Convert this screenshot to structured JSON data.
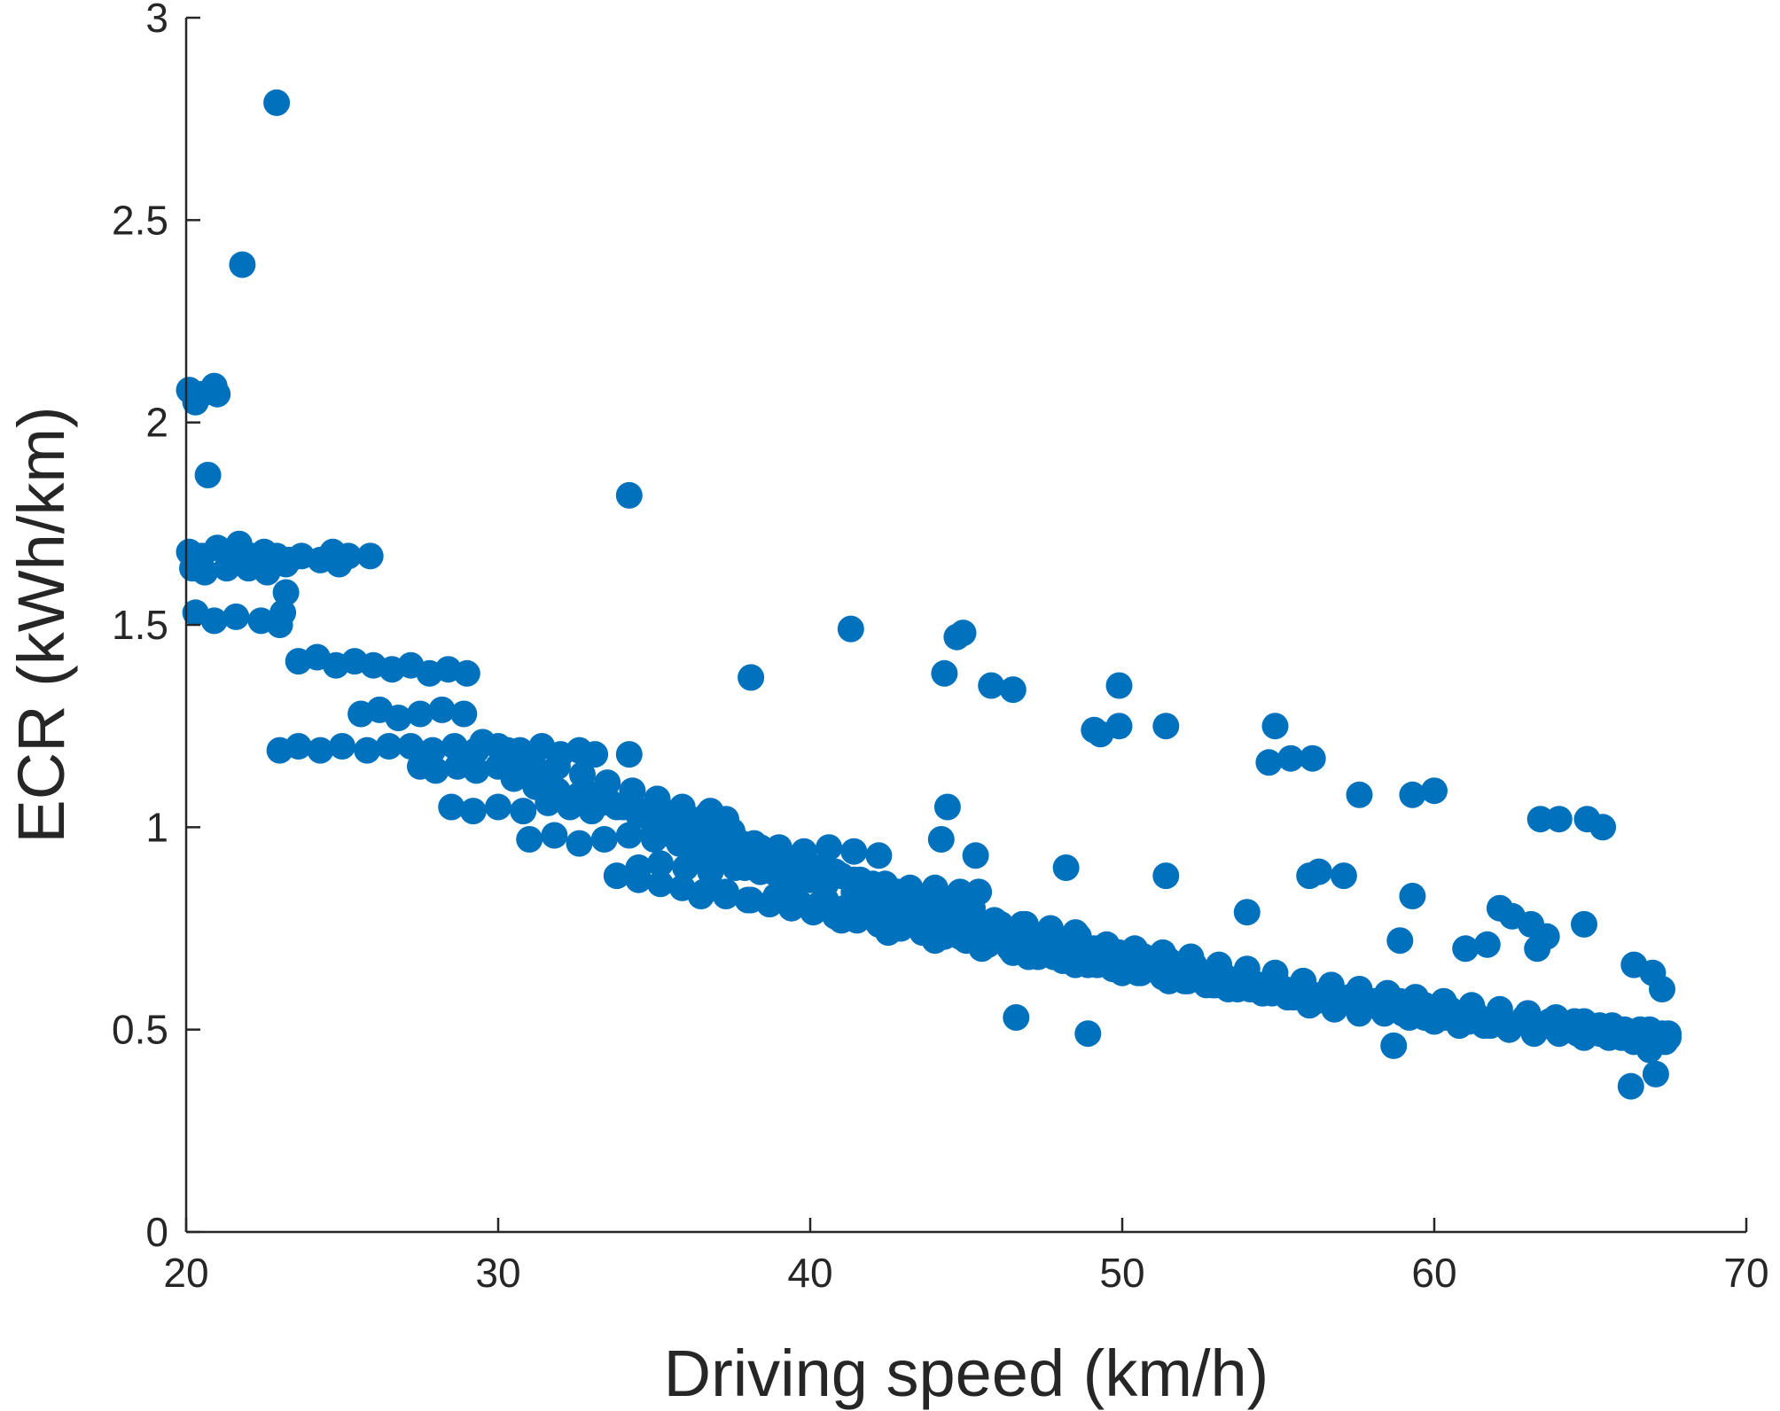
{
  "chart_data": {
    "type": "scatter",
    "title": "",
    "xlabel": "Driving speed (km/h)",
    "ylabel": "ECR (kWh/km)",
    "xlim": [
      20,
      70
    ],
    "ylim": [
      0,
      3
    ],
    "xticks": [
      20,
      30,
      40,
      50,
      60,
      70
    ],
    "xtick_labels": [
      "20",
      "30",
      "40",
      "50",
      "60",
      "70"
    ],
    "yticks": [
      0,
      0.5,
      1,
      1.5,
      2,
      2.5,
      3
    ],
    "ytick_labels": [
      "0",
      "0.5",
      "1",
      "1.5",
      "2",
      "2.5",
      "3"
    ],
    "grid": false,
    "legend": false,
    "marker_color": "#0072BD",
    "series": [
      {
        "x": [
          22.9,
          21.8,
          20.1,
          20.3,
          20.5,
          20.9,
          21.0,
          20.7,
          34.2,
          20.1,
          20.5,
          21.0,
          21.4,
          21.7,
          22.1,
          22.5,
          22.9,
          23.3,
          23.7,
          24.3,
          24.7,
          25.2,
          25.9,
          20.2,
          20.6,
          21.3,
          22.0,
          22.6,
          23.2,
          24.9,
          23.2,
          23.1,
          20.3,
          20.9,
          21.6,
          22.4,
          23.0,
          23.6,
          24.2,
          24.8,
          25.4,
          26.0,
          26.6,
          27.2,
          27.8,
          28.4,
          29.0,
          41.3,
          44.9,
          44.7,
          38.1,
          44.3,
          45.8,
          46.5,
          49.9,
          51.4,
          49.1,
          49.3,
          49.9,
          54.9,
          54.7,
          55.4,
          56.1,
          57.6,
          59.3,
          60.0,
          63.4,
          64.0,
          64.9,
          65.4,
          44.4,
          44.2,
          45.3,
          48.2,
          51.4,
          56.0,
          56.3,
          57.1,
          54.0,
          59.3,
          62.1,
          62.5,
          63.1,
          63.6,
          64.8,
          58.9,
          61.0,
          61.7,
          63.3,
          46.6,
          48.9,
          58.7,
          66.3,
          66.9,
          67.1,
          66.4,
          67.0,
          67.3,
          67.5,
          25.6,
          26.2,
          26.8,
          27.5,
          28.2,
          28.9,
          23.0,
          23.6,
          24.3,
          25.0,
          25.8,
          26.5,
          27.2,
          27.9,
          28.6,
          29.3,
          30.0,
          30.7,
          31.4,
          32.0,
          32.6,
          33.1,
          34.2,
          27.5,
          28.0,
          28.7,
          29.3,
          30.0,
          30.7,
          31.4,
          28.5,
          29.2,
          30.0,
          30.8,
          31.6,
          32.3,
          33.0,
          33.8,
          34.5,
          35.3,
          36.0,
          36.8,
          37.3,
          31.0,
          31.8,
          32.6,
          33.4,
          34.2,
          35.0,
          35.8,
          36.6,
          37.4,
          38.2,
          39.0,
          39.8,
          40.6,
          41.4,
          42.2,
          34.5,
          35.2,
          36.0,
          36.8,
          37.6,
          38.4,
          39.2,
          40.0,
          40.8,
          41.6,
          42.4,
          43.2,
          44.0,
          44.8,
          45.4,
          36.5,
          37.3,
          38.1,
          38.9,
          39.7,
          40.5,
          41.3,
          42.1,
          42.9,
          43.7,
          44.5,
          45.3,
          46.1,
          46.9,
          47.7,
          48.5,
          39.5,
          40.3,
          41.1,
          41.9,
          42.7,
          43.5,
          44.3,
          45.1,
          45.9,
          46.7,
          47.5,
          48.3,
          49.1,
          49.9,
          50.7,
          51.5,
          52.3,
          53.1,
          44.0,
          44.8,
          45.6,
          46.4,
          47.2,
          48.0,
          48.8,
          49.6,
          50.4,
          51.2,
          52.0,
          52.8,
          53.6,
          54.4,
          55.2,
          56.0,
          46.5,
          47.3,
          48.1,
          48.9,
          49.7,
          50.5,
          51.3,
          52.1,
          52.9,
          53.7,
          54.5,
          55.3,
          56.1,
          56.9,
          57.7,
          58.5,
          59.3,
          60.1,
          60.9,
          61.7,
          52.5,
          53.3,
          54.1,
          54.9,
          55.7,
          56.5,
          57.3,
          58.1,
          58.9,
          59.7,
          60.5,
          61.3,
          62.1,
          62.9,
          63.7,
          64.5,
          65.3,
          66.1,
          66.9,
          67.5,
          56.0,
          56.8,
          57.6,
          58.4,
          59.2,
          60.0,
          60.8,
          61.6,
          62.4,
          63.2,
          64.0,
          64.8,
          65.6,
          66.4,
          67.2,
          35.0,
          35.6,
          36.2,
          36.8,
          37.4,
          38.0,
          38.6,
          39.2,
          39.8,
          40.4,
          41.0,
          41.6,
          42.2,
          42.8,
          43.4,
          44.0,
          44.6,
          45.2,
          33.0,
          33.6,
          34.2,
          34.8,
          35.4,
          36.0,
          36.6,
          37.2,
          37.8,
          38.4,
          39.0,
          39.6,
          40.2,
          40.8,
          41.4,
          42.0,
          30.5,
          31.2,
          31.9,
          32.6,
          33.3,
          34.0,
          34.7,
          35.4,
          36.1,
          36.8,
          37.5,
          33.8,
          34.5,
          35.2,
          35.9,
          36.6,
          37.3,
          38.0,
          38.7,
          39.4,
          40.1,
          40.8,
          41.5,
          42.2,
          42.9,
          43.6,
          44.3,
          45.0,
          45.7,
          46.4,
          47.1,
          47.8,
          48.5,
          49.2,
          49.9,
          50.6,
          51.3,
          52.0,
          52.7,
          53.4,
          54.1,
          54.8,
          55.5,
          56.2,
          56.9,
          57.6,
          58.3,
          59.0,
          59.7,
          60.4,
          61.1,
          61.8,
          62.5,
          63.2,
          63.9,
          64.6,
          65.3,
          66.0,
          66.7,
          67.4,
          41.0,
          42.5,
          44.0,
          45.5,
          47.0,
          48.5,
          50.0,
          51.5,
          53.0,
          54.5,
          56.0,
          57.5,
          59.0,
          60.5,
          62.0,
          63.5,
          65.0,
          66.5,
          36.2,
          37.0,
          37.9,
          38.8,
          39.6,
          40.5,
          41.4,
          42.3,
          43.2,
          44.1,
          45.0,
          45.9,
          46.8,
          47.7,
          48.6,
          49.5,
          50.4,
          51.3,
          52.2,
          53.1,
          54.0,
          54.9,
          55.8,
          56.7,
          57.6,
          58.5,
          59.4,
          60.3,
          61.2,
          62.1,
          63.0,
          63.9,
          64.8,
          65.7,
          66.6,
          67.3,
          29.5,
          30.3,
          31.1,
          31.9,
          32.7,
          33.5,
          34.3,
          35.1,
          35.9,
          36.7
        ],
        "y": [
          2.79,
          2.39,
          2.08,
          2.05,
          2.07,
          2.09,
          2.07,
          1.87,
          1.82,
          1.68,
          1.67,
          1.69,
          1.68,
          1.7,
          1.67,
          1.68,
          1.67,
          1.66,
          1.67,
          1.66,
          1.68,
          1.67,
          1.67,
          1.64,
          1.63,
          1.64,
          1.64,
          1.63,
          1.65,
          1.65,
          1.58,
          1.53,
          1.53,
          1.51,
          1.52,
          1.51,
          1.5,
          1.41,
          1.42,
          1.4,
          1.41,
          1.4,
          1.39,
          1.4,
          1.38,
          1.39,
          1.38,
          1.49,
          1.48,
          1.47,
          1.37,
          1.38,
          1.35,
          1.34,
          1.35,
          1.25,
          1.24,
          1.23,
          1.25,
          1.25,
          1.16,
          1.17,
          1.17,
          1.08,
          1.08,
          1.09,
          1.02,
          1.02,
          1.02,
          1.0,
          1.05,
          0.97,
          0.93,
          0.9,
          0.88,
          0.88,
          0.89,
          0.88,
          0.79,
          0.83,
          0.8,
          0.78,
          0.76,
          0.73,
          0.76,
          0.72,
          0.7,
          0.71,
          0.7,
          0.53,
          0.49,
          0.46,
          0.36,
          0.45,
          0.39,
          0.66,
          0.64,
          0.6,
          0.48,
          1.28,
          1.29,
          1.27,
          1.28,
          1.29,
          1.28,
          1.19,
          1.2,
          1.19,
          1.2,
          1.19,
          1.2,
          1.2,
          1.19,
          1.2,
          1.19,
          1.2,
          1.19,
          1.2,
          1.18,
          1.19,
          1.18,
          1.18,
          1.15,
          1.14,
          1.15,
          1.14,
          1.15,
          1.14,
          1.13,
          1.05,
          1.04,
          1.05,
          1.04,
          1.06,
          1.05,
          1.04,
          1.05,
          1.03,
          1.04,
          1.03,
          1.04,
          1.02,
          0.97,
          0.98,
          0.96,
          0.97,
          0.98,
          0.97,
          0.96,
          0.97,
          0.95,
          0.96,
          0.95,
          0.94,
          0.95,
          0.94,
          0.93,
          0.9,
          0.91,
          0.9,
          0.89,
          0.9,
          0.89,
          0.88,
          0.87,
          0.88,
          0.87,
          0.86,
          0.85,
          0.85,
          0.84,
          0.84,
          0.83,
          0.84,
          0.82,
          0.83,
          0.81,
          0.82,
          0.8,
          0.81,
          0.79,
          0.78,
          0.78,
          0.77,
          0.76,
          0.76,
          0.75,
          0.74,
          0.82,
          0.81,
          0.8,
          0.79,
          0.78,
          0.77,
          0.76,
          0.75,
          0.74,
          0.73,
          0.72,
          0.71,
          0.7,
          0.69,
          0.68,
          0.67,
          0.66,
          0.65,
          0.74,
          0.73,
          0.72,
          0.71,
          0.7,
          0.69,
          0.68,
          0.67,
          0.66,
          0.65,
          0.64,
          0.63,
          0.62,
          0.61,
          0.6,
          0.59,
          0.69,
          0.68,
          0.67,
          0.66,
          0.65,
          0.64,
          0.63,
          0.62,
          0.61,
          0.6,
          0.59,
          0.58,
          0.58,
          0.57,
          0.56,
          0.55,
          0.55,
          0.54,
          0.53,
          0.52,
          0.64,
          0.63,
          0.62,
          0.61,
          0.6,
          0.59,
          0.58,
          0.57,
          0.57,
          0.56,
          0.55,
          0.54,
          0.54,
          0.53,
          0.52,
          0.52,
          0.51,
          0.5,
          0.5,
          0.49,
          0.56,
          0.55,
          0.54,
          0.54,
          0.53,
          0.52,
          0.51,
          0.51,
          0.5,
          0.49,
          0.49,
          0.48,
          0.48,
          0.47,
          0.47,
          0.99,
          0.98,
          0.97,
          0.96,
          0.95,
          0.93,
          0.92,
          0.91,
          0.9,
          0.89,
          0.88,
          0.86,
          0.85,
          0.84,
          0.83,
          0.82,
          0.81,
          0.8,
          1.08,
          1.06,
          1.05,
          1.03,
          1.02,
          1.01,
          0.99,
          0.98,
          0.96,
          0.95,
          0.93,
          0.92,
          0.9,
          0.89,
          0.87,
          0.86,
          1.12,
          1.1,
          1.09,
          1.08,
          1.06,
          1.05,
          1.04,
          1.02,
          1.01,
          1.0,
          0.99,
          0.88,
          0.87,
          0.86,
          0.85,
          0.84,
          0.83,
          0.82,
          0.81,
          0.8,
          0.79,
          0.78,
          0.77,
          0.76,
          0.75,
          0.74,
          0.73,
          0.72,
          0.71,
          0.7,
          0.69,
          0.68,
          0.67,
          0.66,
          0.65,
          0.64,
          0.63,
          0.62,
          0.61,
          0.6,
          0.6,
          0.59,
          0.58,
          0.57,
          0.56,
          0.56,
          0.55,
          0.54,
          0.53,
          0.53,
          0.52,
          0.51,
          0.51,
          0.5,
          0.5,
          0.49,
          0.49,
          0.48,
          0.48,
          0.47,
          0.77,
          0.74,
          0.72,
          0.7,
          0.68,
          0.66,
          0.64,
          0.62,
          0.61,
          0.59,
          0.57,
          0.56,
          0.54,
          0.53,
          0.52,
          0.51,
          0.5,
          0.49,
          0.93,
          0.92,
          0.9,
          0.89,
          0.87,
          0.86,
          0.84,
          0.83,
          0.81,
          0.8,
          0.78,
          0.77,
          0.76,
          0.74,
          0.73,
          0.71,
          0.7,
          0.69,
          0.68,
          0.66,
          0.65,
          0.64,
          0.62,
          0.61,
          0.6,
          0.59,
          0.58,
          0.57,
          0.56,
          0.55,
          0.54,
          0.53,
          0.52,
          0.51,
          0.5,
          0.49,
          1.21,
          1.19,
          1.17,
          1.15,
          1.13,
          1.11,
          1.09,
          1.07,
          1.05,
          1.03
        ]
      }
    ]
  }
}
